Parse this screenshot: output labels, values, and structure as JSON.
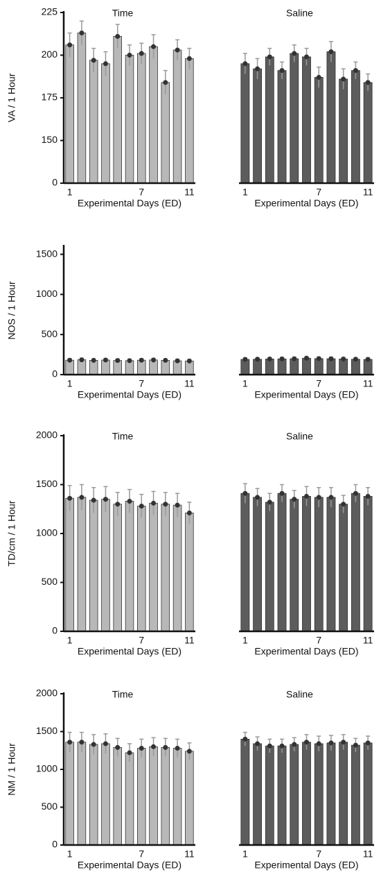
{
  "chart_data": [
    {
      "type": "bar",
      "title": "Time",
      "y_label": "VA / 1 Hour",
      "x_label": "Experimental Days (ED)",
      "categories": [
        "1",
        null,
        null,
        null,
        null,
        null,
        "7",
        null,
        null,
        null,
        "11"
      ],
      "broken_axis": true,
      "ylim": [
        0,
        225
      ],
      "yticks": [
        0,
        150,
        175,
        200,
        225
      ],
      "series": [
        {
          "color": "#b8b8b8",
          "values": [
            206,
            213,
            197,
            195,
            211,
            200,
            201,
            205,
            184,
            203,
            198
          ],
          "errors": [
            7,
            7,
            7,
            7,
            7,
            6,
            6,
            7,
            7,
            6,
            6
          ]
        }
      ]
    },
    {
      "type": "bar",
      "title": "Saline",
      "x_label": "Experimental Days (ED)",
      "categories": [
        "1",
        null,
        null,
        null,
        null,
        null,
        "7",
        null,
        null,
        null,
        "11"
      ],
      "broken_axis": true,
      "ylim": [
        0,
        225
      ],
      "series": [
        {
          "color": "#5c5c5c",
          "values": [
            195,
            192,
            199,
            191,
            201,
            199,
            187,
            202,
            186,
            191,
            184
          ],
          "errors": [
            6,
            6,
            5,
            5,
            5,
            5,
            6,
            6,
            6,
            5,
            5
          ]
        }
      ]
    },
    {
      "type": "bar",
      "y_label": "NOS / 1 Hour",
      "x_label": "Experimental Days (ED)",
      "categories": [
        "1",
        null,
        null,
        null,
        null,
        null,
        "7",
        null,
        null,
        null,
        "11"
      ],
      "ylim": [
        0,
        1600
      ],
      "yticks": [
        0,
        500,
        1000,
        1500
      ],
      "series": [
        {
          "color": "#b8b8b8",
          "values": [
            180,
            185,
            178,
            182,
            176,
            174,
            180,
            183,
            178,
            172,
            170
          ],
          "errors": [
            20,
            20,
            20,
            20,
            20,
            20,
            20,
            20,
            20,
            20,
            20
          ]
        }
      ]
    },
    {
      "type": "bar",
      "x_label": "Experimental Days (ED)",
      "categories": [
        "1",
        null,
        null,
        null,
        null,
        null,
        "7",
        null,
        null,
        null,
        "11"
      ],
      "ylim": [
        0,
        1600
      ],
      "series": [
        {
          "color": "#5c5c5c",
          "values": [
            190,
            192,
            195,
            196,
            198,
            205,
            200,
            198,
            195,
            192,
            190
          ],
          "errors": [
            20,
            20,
            20,
            20,
            20,
            20,
            20,
            20,
            20,
            20,
            20
          ]
        }
      ]
    },
    {
      "type": "bar",
      "title": "Time",
      "y_label": "TD/cm / 1 Hour",
      "x_label": "Experimental Days (ED)",
      "categories": [
        "1",
        null,
        null,
        null,
        null,
        null,
        "7",
        null,
        null,
        null,
        "11"
      ],
      "ylim": [
        0,
        2000
      ],
      "yticks": [
        0,
        500,
        1000,
        1500,
        2000
      ],
      "series": [
        {
          "color": "#b8b8b8",
          "values": [
            1360,
            1370,
            1340,
            1350,
            1300,
            1330,
            1280,
            1310,
            1300,
            1290,
            1210
          ],
          "errors": [
            130,
            130,
            130,
            130,
            120,
            120,
            120,
            120,
            120,
            120,
            110
          ]
        }
      ]
    },
    {
      "type": "bar",
      "title": "Saline",
      "x_label": "Experimental Days (ED)",
      "categories": [
        "1",
        null,
        null,
        null,
        null,
        null,
        "7",
        null,
        null,
        null,
        "11"
      ],
      "ylim": [
        0,
        2000
      ],
      "series": [
        {
          "color": "#5c5c5c",
          "values": [
            1410,
            1370,
            1320,
            1410,
            1350,
            1380,
            1370,
            1370,
            1300,
            1410,
            1380
          ],
          "errors": [
            100,
            90,
            90,
            90,
            90,
            100,
            100,
            100,
            90,
            90,
            90
          ]
        }
      ]
    },
    {
      "type": "bar",
      "title": "Time",
      "y_label": "NM / 1 Hour",
      "x_label": "Experimental Days (ED)",
      "categories": [
        "1",
        null,
        null,
        null,
        null,
        null,
        "7",
        null,
        null,
        null,
        "11"
      ],
      "ylim": [
        0,
        2000
      ],
      "yticks": [
        0,
        500,
        1000,
        1500,
        2000
      ],
      "series": [
        {
          "color": "#b8b8b8",
          "values": [
            1360,
            1360,
            1330,
            1340,
            1290,
            1220,
            1280,
            1300,
            1290,
            1280,
            1240
          ],
          "errors": [
            130,
            130,
            130,
            130,
            120,
            120,
            120,
            120,
            120,
            120,
            110
          ]
        }
      ]
    },
    {
      "type": "bar",
      "title": "Saline",
      "x_label": "Experimental Days (ED)",
      "categories": [
        "1",
        null,
        null,
        null,
        null,
        null,
        "7",
        null,
        null,
        null,
        "11"
      ],
      "ylim": [
        0,
        2000
      ],
      "series": [
        {
          "color": "#5c5c5c",
          "values": [
            1400,
            1340,
            1310,
            1310,
            1330,
            1360,
            1340,
            1350,
            1360,
            1320,
            1350
          ],
          "errors": [
            90,
            90,
            90,
            90,
            90,
            100,
            100,
            100,
            100,
            90,
            90
          ]
        }
      ]
    }
  ]
}
